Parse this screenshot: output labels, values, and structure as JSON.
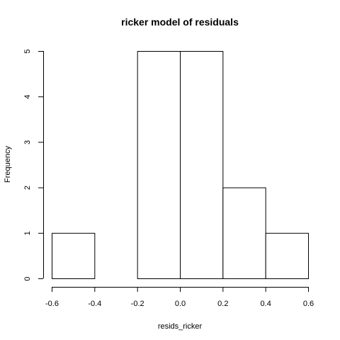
{
  "chart_data": {
    "type": "bar",
    "title": "ricker model of residuals",
    "xlabel": "resids_ricker",
    "ylabel": "Frequency",
    "bins": [
      {
        "x0": -0.6,
        "x1": -0.4,
        "count": 1
      },
      {
        "x0": -0.4,
        "x1": -0.2,
        "count": 0
      },
      {
        "x0": -0.2,
        "x1": 0.0,
        "count": 5
      },
      {
        "x0": 0.0,
        "x1": 0.2,
        "count": 5
      },
      {
        "x0": 0.2,
        "x1": 0.4,
        "count": 2
      },
      {
        "x0": 0.4,
        "x1": 0.6,
        "count": 1
      }
    ],
    "xlim": [
      -0.6,
      0.6
    ],
    "ylim": [
      0,
      5
    ],
    "xticks": [
      "-0.6",
      "-0.4",
      "-0.2",
      "0.0",
      "0.2",
      "0.4",
      "0.6"
    ],
    "yticks": [
      "0",
      "1",
      "2",
      "3",
      "4",
      "5"
    ],
    "grid": false,
    "legend": "none"
  }
}
